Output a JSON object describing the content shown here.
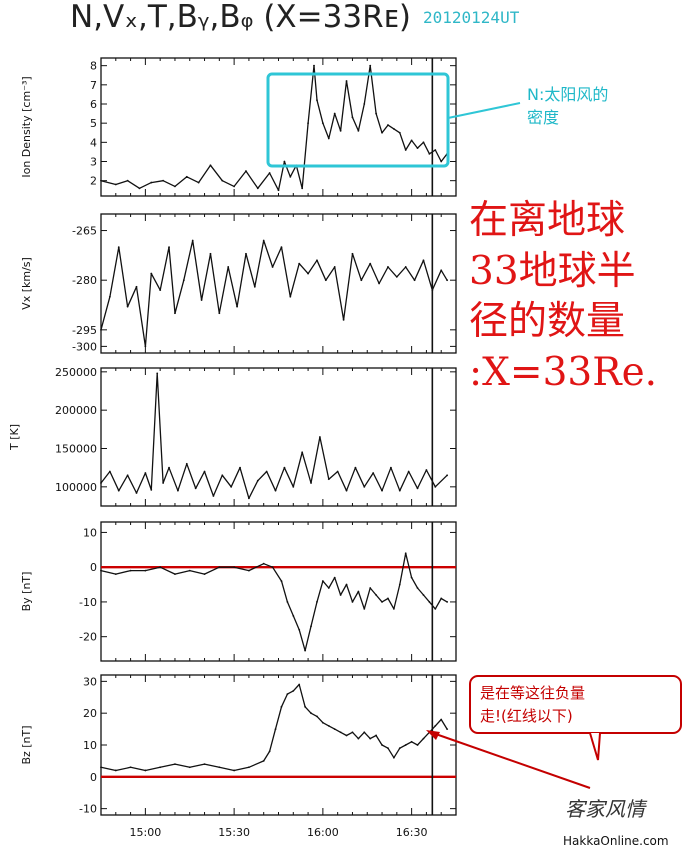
{
  "title": {
    "main": "N,Vₓ,T,Bᵧ,Bᵩ  (X=33Rᴇ)",
    "date": "20120124UT"
  },
  "annotations": {
    "cyan_note_line1": "N:太阳风的",
    "cyan_note_line2": "密度",
    "red_lines": [
      "在离地球",
      "33地球半",
      "径的数量",
      ":X=33Re."
    ],
    "callout_line1": "是在等这往负量",
    "callout_line2": "走!(红线以下)",
    "signature": "客家风情",
    "site": "HakkaOnline.com"
  },
  "colors": {
    "trace": "#111111",
    "zero_line": "#cc0000",
    "highlight_box": "#2fc6d6",
    "red_text": "#e01515",
    "callout_border": "#c40000",
    "callout_arrow": "#c40000",
    "marker_line": "#111111"
  },
  "chart_data": {
    "type": "line",
    "x_axis": {
      "range": [
        "14:45",
        "16:45"
      ],
      "ticks": [
        "15:00",
        "15:30",
        "16:00",
        "16:30"
      ],
      "vertical_marker": "16:37"
    },
    "panels": [
      {
        "id": "density",
        "ylabel": "Ion Density [cm⁻³]",
        "ylim": [
          1.2,
          8.4
        ],
        "ticks": [
          2,
          3,
          4,
          5,
          6,
          7,
          8
        ],
        "tick_labels": [
          "2",
          "3",
          "4",
          "5",
          "6",
          "7",
          "8"
        ],
        "zero_line": false,
        "x": [
          "14:45",
          "14:50",
          "14:54",
          "14:58",
          "15:02",
          "15:06",
          "15:10",
          "15:14",
          "15:18",
          "15:22",
          "15:26",
          "15:30",
          "15:34",
          "15:38",
          "15:42",
          "15:45",
          "15:47",
          "15:49",
          "15:51",
          "15:53",
          "15:55",
          "15:57",
          "15:58",
          "16:00",
          "16:02",
          "16:04",
          "16:06",
          "16:08",
          "16:10",
          "16:12",
          "16:14",
          "16:16",
          "16:18",
          "16:20",
          "16:22",
          "16:24",
          "16:26",
          "16:28",
          "16:30",
          "16:32",
          "16:34",
          "16:36",
          "16:38",
          "16:40",
          "16:42"
        ],
        "values": [
          2.0,
          1.8,
          2.0,
          1.6,
          1.9,
          2.0,
          1.7,
          2.2,
          1.9,
          2.8,
          2.0,
          1.7,
          2.5,
          1.6,
          2.4,
          1.5,
          3.0,
          2.2,
          2.8,
          1.6,
          5.0,
          8.0,
          6.2,
          5.0,
          4.2,
          5.5,
          4.6,
          7.2,
          5.3,
          4.6,
          6.0,
          8.0,
          5.5,
          4.5,
          4.9,
          4.7,
          4.5,
          3.6,
          4.1,
          3.7,
          4.0,
          3.4,
          3.6,
          3.0,
          3.4
        ]
      },
      {
        "id": "vx",
        "ylabel": "Vx [km/s]",
        "ylim": [
          -302,
          -260
        ],
        "ticks": [
          -265,
          -280,
          -295,
          -300
        ],
        "tick_labels": [
          "-265",
          "-280",
          "-295",
          "-300"
        ],
        "zero_line": false,
        "x": [
          "14:45",
          "14:48",
          "14:51",
          "14:54",
          "14:57",
          "15:00",
          "15:02",
          "15:05",
          "15:08",
          "15:10",
          "15:13",
          "15:16",
          "15:19",
          "15:22",
          "15:25",
          "15:28",
          "15:31",
          "15:34",
          "15:37",
          "15:40",
          "15:43",
          "15:46",
          "15:49",
          "15:52",
          "15:55",
          "15:58",
          "16:01",
          "16:04",
          "16:07",
          "16:10",
          "16:13",
          "16:16",
          "16:19",
          "16:22",
          "16:25",
          "16:28",
          "16:31",
          "16:34",
          "16:37",
          "16:40",
          "16:42"
        ],
        "values": [
          -295,
          -285,
          -270,
          -288,
          -282,
          -300,
          -278,
          -283,
          -270,
          -290,
          -280,
          -268,
          -286,
          -272,
          -290,
          -276,
          -288,
          -272,
          -282,
          -268,
          -276,
          -270,
          -285,
          -275,
          -278,
          -274,
          -280,
          -276,
          -292,
          -272,
          -280,
          -275,
          -281,
          -276,
          -279,
          -276,
          -280,
          -274,
          -283,
          -277,
          -280
        ]
      },
      {
        "id": "temp",
        "ylabel": "T [K]",
        "ylim": [
          75000,
          255000
        ],
        "ticks": [
          100000,
          150000,
          200000,
          250000
        ],
        "tick_labels": [
          "100000",
          "150000",
          "200000",
          "250000"
        ],
        "zero_line": false,
        "x": [
          "14:45",
          "14:48",
          "14:51",
          "14:54",
          "14:57",
          "15:00",
          "15:02",
          "15:04",
          "15:06",
          "15:08",
          "15:11",
          "15:14",
          "15:17",
          "15:20",
          "15:23",
          "15:26",
          "15:29",
          "15:32",
          "15:35",
          "15:38",
          "15:41",
          "15:44",
          "15:47",
          "15:50",
          "15:53",
          "15:56",
          "15:59",
          "16:02",
          "16:05",
          "16:08",
          "16:11",
          "16:14",
          "16:17",
          "16:20",
          "16:23",
          "16:26",
          "16:29",
          "16:32",
          "16:35",
          "16:38",
          "16:42"
        ],
        "values": [
          105000,
          120000,
          95000,
          115000,
          92000,
          118000,
          96000,
          248000,
          105000,
          125000,
          95000,
          130000,
          98000,
          120000,
          88000,
          115000,
          100000,
          125000,
          85000,
          108000,
          120000,
          95000,
          125000,
          100000,
          145000,
          105000,
          165000,
          110000,
          120000,
          95000,
          125000,
          100000,
          118000,
          95000,
          125000,
          95000,
          120000,
          98000,
          122000,
          100000,
          115000
        ]
      },
      {
        "id": "by",
        "ylabel": "By [nT]",
        "ylim": [
          -27,
          13
        ],
        "ticks": [
          10,
          0,
          -10,
          -20
        ],
        "tick_labels": [
          "10",
          "0",
          "-10",
          "-20"
        ],
        "zero_line": true,
        "x": [
          "14:45",
          "14:50",
          "14:55",
          "15:00",
          "15:05",
          "15:10",
          "15:15",
          "15:20",
          "15:25",
          "15:30",
          "15:35",
          "15:40",
          "15:43",
          "15:46",
          "15:48",
          "15:50",
          "15:52",
          "15:54",
          "15:56",
          "15:58",
          "16:00",
          "16:02",
          "16:04",
          "16:06",
          "16:08",
          "16:10",
          "16:12",
          "16:14",
          "16:16",
          "16:18",
          "16:20",
          "16:22",
          "16:24",
          "16:26",
          "16:28",
          "16:30",
          "16:32",
          "16:34",
          "16:36",
          "16:38",
          "16:40",
          "16:42"
        ],
        "values": [
          -1,
          -2,
          -1,
          -1,
          0,
          -2,
          -1,
          -2,
          0,
          0,
          -1,
          1,
          0,
          -4,
          -10,
          -14,
          -18,
          -24,
          -17,
          -10,
          -4,
          -6,
          -3,
          -8,
          -5,
          -10,
          -7,
          -12,
          -6,
          -8,
          -10,
          -9,
          -12,
          -5,
          4,
          -3,
          -6,
          -8,
          -10,
          -12,
          -9,
          -10
        ]
      },
      {
        "id": "bz",
        "ylabel": "Bz [nT]",
        "ylim": [
          -12,
          32
        ],
        "ticks": [
          30,
          20,
          10,
          0,
          -10
        ],
        "tick_labels": [
          "30",
          "20",
          "10",
          "0",
          "-10"
        ],
        "zero_line": true,
        "x": [
          "14:45",
          "14:50",
          "14:55",
          "15:00",
          "15:05",
          "15:10",
          "15:15",
          "15:20",
          "15:25",
          "15:30",
          "15:35",
          "15:40",
          "15:42",
          "15:44",
          "15:46",
          "15:48",
          "15:50",
          "15:52",
          "15:54",
          "15:56",
          "15:58",
          "16:00",
          "16:02",
          "16:04",
          "16:06",
          "16:08",
          "16:10",
          "16:12",
          "16:14",
          "16:16",
          "16:18",
          "16:20",
          "16:22",
          "16:24",
          "16:26",
          "16:28",
          "16:30",
          "16:32",
          "16:34",
          "16:36",
          "16:38",
          "16:40",
          "16:42"
        ],
        "values": [
          3,
          2,
          3,
          2,
          3,
          4,
          3,
          4,
          3,
          2,
          3,
          5,
          8,
          15,
          22,
          26,
          27,
          29,
          22,
          20,
          19,
          17,
          16,
          15,
          14,
          13,
          14,
          12,
          14,
          12,
          13,
          10,
          9,
          6,
          9,
          10,
          11,
          10,
          12,
          14,
          16,
          18,
          15
        ]
      }
    ]
  }
}
